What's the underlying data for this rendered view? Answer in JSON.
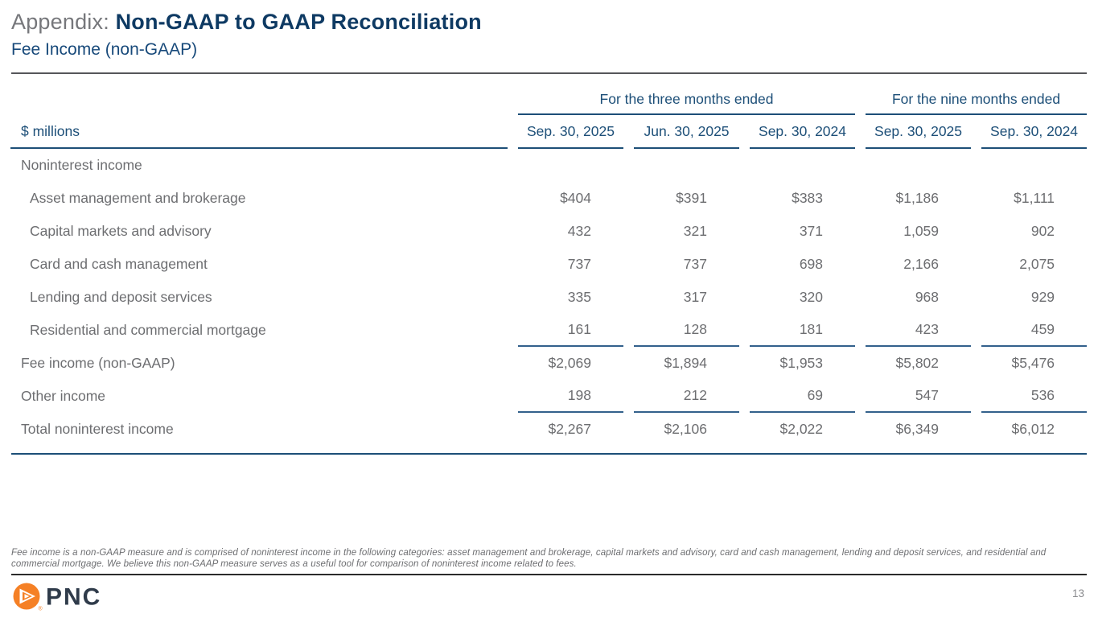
{
  "header": {
    "title_prefix": "Appendix: ",
    "title_main": "Non-GAAP to GAAP Reconciliation",
    "subtitle": "Fee Income (non-GAAP)"
  },
  "table": {
    "unit_label": "$ millions",
    "col_groups": [
      {
        "label": "For the three months ended",
        "span": 3
      },
      {
        "label": "For the nine months ended",
        "span": 2
      }
    ],
    "columns": [
      "Sep. 30, 2025",
      "Jun. 30, 2025",
      "Sep. 30, 2024",
      "Sep. 30, 2025",
      "Sep. 30, 2024"
    ],
    "rows": [
      {
        "label": "Noninterest income",
        "indent": false,
        "rule_below": false,
        "values": [
          "",
          "",
          "",
          "",
          ""
        ]
      },
      {
        "label": "Asset management and brokerage",
        "indent": true,
        "rule_below": false,
        "values": [
          "$404",
          "$391",
          "$383",
          "$1,186",
          "$1,111"
        ]
      },
      {
        "label": "Capital markets and advisory",
        "indent": true,
        "rule_below": false,
        "values": [
          "432",
          "321",
          "371",
          "1,059",
          "902"
        ]
      },
      {
        "label": "Card and cash management",
        "indent": true,
        "rule_below": false,
        "values": [
          "737",
          "737",
          "698",
          "2,166",
          "2,075"
        ]
      },
      {
        "label": "Lending and deposit services",
        "indent": true,
        "rule_below": false,
        "values": [
          "335",
          "317",
          "320",
          "968",
          "929"
        ]
      },
      {
        "label": "Residential and commercial mortgage",
        "indent": true,
        "rule_below": true,
        "values": [
          "161",
          "128",
          "181",
          "423",
          "459"
        ]
      },
      {
        "label": "Fee income (non-GAAP)",
        "indent": false,
        "rule_below": false,
        "values": [
          "$2,069",
          "$1,894",
          "$1,953",
          "$5,802",
          "$5,476"
        ]
      },
      {
        "label": "Other income",
        "indent": false,
        "rule_below": true,
        "values": [
          "198",
          "212",
          "69",
          "547",
          "536"
        ]
      },
      {
        "label": "Total noninterest income",
        "indent": false,
        "rule_below": false,
        "values": [
          "$2,267",
          "$2,106",
          "$2,022",
          "$6,349",
          "$6,012"
        ]
      }
    ]
  },
  "footnote": "Fee income is a non-GAAP measure and is comprised of noninterest income in the following categories: asset management and brokerage, capital markets and advisory, card and cash management, lending and deposit services, and residential and commercial mortgage. We believe this non-GAAP measure serves as a useful tool for comparison of noninterest income related to fees.",
  "footer": {
    "logo_text": "PNC",
    "registered_mark": "®",
    "page_number": "13"
  },
  "colors": {
    "title_navy": "#0e3a63",
    "steel_blue": "#1d4f78",
    "body_gray": "#6d6e71",
    "rule_gray": "#55565a",
    "logo_orange": "#f58025",
    "logo_navy": "#2f3b4a"
  }
}
